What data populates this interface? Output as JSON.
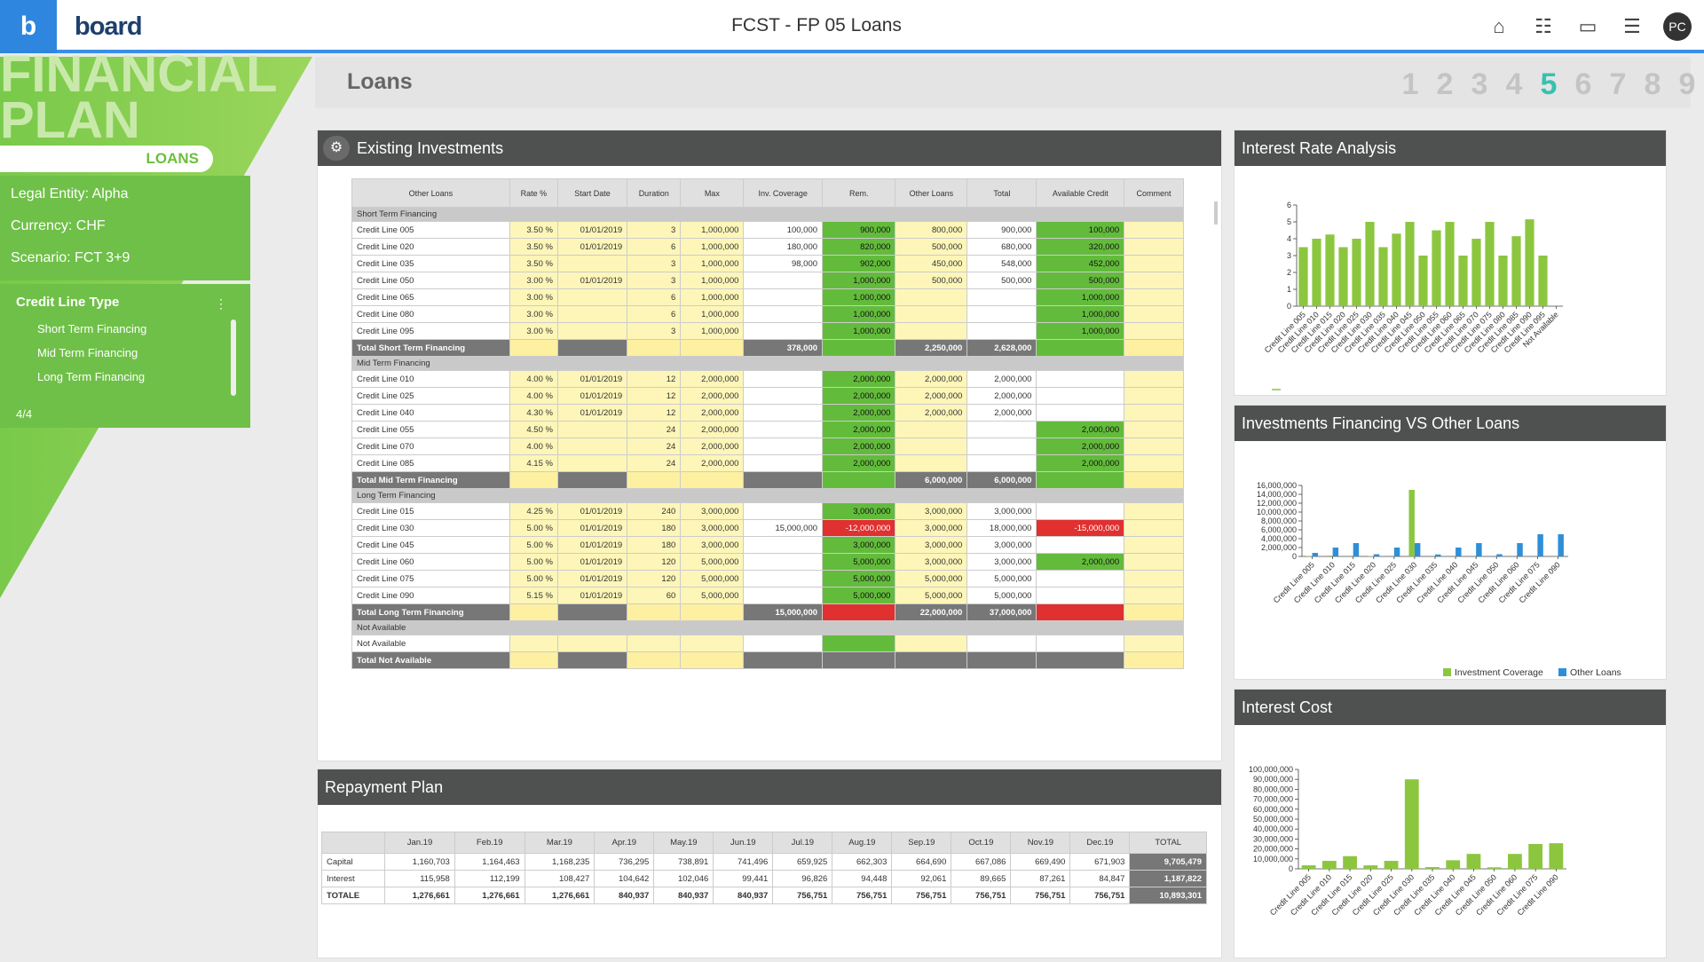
{
  "app": {
    "logo_letter": "b",
    "brand": "board",
    "title": "FCST - FP 05 Loans",
    "avatar": "PC"
  },
  "left": {
    "title_line1": "FINANCIAL",
    "title_line2": "PLAN",
    "subtitle": "LOANS",
    "legal": "Legal Entity: Alpha",
    "currency": "Currency:  CHF",
    "scenario": "Scenario: FCT 3+9",
    "credit_type": {
      "label": "Credit Line Type",
      "items": [
        "Short Term Financing",
        "Mid Term Financing",
        "Long Term Financing"
      ],
      "count": "4/4"
    }
  },
  "page": {
    "title": "Loans",
    "pages": [
      "1",
      "2",
      "3",
      "4",
      "5",
      "6",
      "7",
      "8",
      "9"
    ],
    "active_page": "5"
  },
  "invest": {
    "title": "Existing Investments",
    "headers": [
      "Other Loans",
      "Rate %",
      "Start Date",
      "Duration",
      "Max",
      "Inv. Coverage",
      "Rem.",
      "Other Loans",
      "Total",
      "Available Credit",
      "Comment"
    ],
    "sections": [
      {
        "name": "Short Term Financing",
        "rows": [
          [
            "Credit Line 005",
            "3.50 %",
            "01/01/2019",
            "3",
            "1,000,000",
            "100,000",
            "900,000",
            "800,000",
            "900,000",
            "100,000"
          ],
          [
            "Credit Line 020",
            "3.50 %",
            "01/01/2019",
            "6",
            "1,000,000",
            "180,000",
            "820,000",
            "500,000",
            "680,000",
            "320,000"
          ],
          [
            "Credit Line 035",
            "3.50 %",
            "",
            "3",
            "1,000,000",
            "98,000",
            "902,000",
            "450,000",
            "548,000",
            "452,000"
          ],
          [
            "Credit Line 050",
            "3.00 %",
            "01/01/2019",
            "3",
            "1,000,000",
            "",
            "1,000,000",
            "500,000",
            "500,000",
            "500,000"
          ],
          [
            "Credit Line 065",
            "3.00 %",
            "",
            "6",
            "1,000,000",
            "",
            "1,000,000",
            "",
            "",
            "1,000,000"
          ],
          [
            "Credit Line 080",
            "3.00 %",
            "",
            "6",
            "1,000,000",
            "",
            "1,000,000",
            "",
            "",
            "1,000,000"
          ],
          [
            "Credit Line 095",
            "3.00 %",
            "",
            "3",
            "1,000,000",
            "",
            "1,000,000",
            "",
            "",
            "1,000,000"
          ]
        ],
        "total": [
          "Total Short Term Financing",
          "",
          "",
          "",
          "",
          "378,000",
          "",
          "2,250,000",
          "2,628,000",
          ""
        ]
      },
      {
        "name": "Mid Term Financing",
        "rows": [
          [
            "Credit Line 010",
            "4.00 %",
            "01/01/2019",
            "12",
            "2,000,000",
            "",
            "2,000,000",
            "2,000,000",
            "2,000,000",
            ""
          ],
          [
            "Credit Line 025",
            "4.00 %",
            "01/01/2019",
            "12",
            "2,000,000",
            "",
            "2,000,000",
            "2,000,000",
            "2,000,000",
            ""
          ],
          [
            "Credit Line 040",
            "4.30 %",
            "01/01/2019",
            "12",
            "2,000,000",
            "",
            "2,000,000",
            "2,000,000",
            "2,000,000",
            ""
          ],
          [
            "Credit Line 055",
            "4.50 %",
            "",
            "24",
            "2,000,000",
            "",
            "2,000,000",
            "",
            "",
            "2,000,000"
          ],
          [
            "Credit Line 070",
            "4.00 %",
            "",
            "24",
            "2,000,000",
            "",
            "2,000,000",
            "",
            "",
            "2,000,000"
          ],
          [
            "Credit Line 085",
            "4.15 %",
            "",
            "24",
            "2,000,000",
            "",
            "2,000,000",
            "",
            "",
            "2,000,000"
          ]
        ],
        "total": [
          "Total Mid Term Financing",
          "",
          "",
          "",
          "",
          "",
          "",
          "6,000,000",
          "6,000,000",
          ""
        ]
      },
      {
        "name": "Long Term Financing",
        "rows": [
          [
            "Credit Line 015",
            "4.25 %",
            "01/01/2019",
            "240",
            "3,000,000",
            "",
            "3,000,000",
            "3,000,000",
            "3,000,000",
            ""
          ],
          [
            "Credit Line 030",
            "5.00 %",
            "01/01/2019",
            "180",
            "3,000,000",
            "15,000,000",
            "-12,000,000",
            "3,000,000",
            "18,000,000",
            "-15,000,000"
          ],
          [
            "Credit Line 045",
            "5.00 %",
            "01/01/2019",
            "180",
            "3,000,000",
            "",
            "3,000,000",
            "3,000,000",
            "3,000,000",
            ""
          ],
          [
            "Credit Line 060",
            "5.00 %",
            "01/01/2019",
            "120",
            "5,000,000",
            "",
            "5,000,000",
            "3,000,000",
            "3,000,000",
            "2,000,000"
          ],
          [
            "Credit Line 075",
            "5.00 %",
            "01/01/2019",
            "120",
            "5,000,000",
            "",
            "5,000,000",
            "5,000,000",
            "5,000,000",
            ""
          ],
          [
            "Credit Line 090",
            "5.15 %",
            "01/01/2019",
            "60",
            "5,000,000",
            "",
            "5,000,000",
            "5,000,000",
            "5,000,000",
            ""
          ]
        ],
        "total": [
          "Total Long Term Financing",
          "",
          "",
          "",
          "",
          "15,000,000",
          "",
          "22,000,000",
          "37,000,000",
          ""
        ]
      },
      {
        "name": "Not Available",
        "rows": [
          [
            "Not Available",
            "",
            "",
            "",
            "",
            "",
            "",
            "",
            "",
            ""
          ]
        ],
        "total": [
          "Total Not Available",
          "",
          "",
          "",
          "",
          "",
          "",
          "",
          "",
          ""
        ]
      }
    ]
  },
  "repay": {
    "title": "Repayment Plan",
    "headers": [
      "",
      "Jan.19",
      "Feb.19",
      "Mar.19",
      "Apr.19",
      "May.19",
      "Jun.19",
      "Jul.19",
      "Aug.19",
      "Sep.19",
      "Oct.19",
      "Nov.19",
      "Dec.19",
      "TOTAL"
    ],
    "rows": [
      [
        "Capital",
        "1,160,703",
        "1,164,463",
        "1,168,235",
        "736,295",
        "738,891",
        "741,496",
        "659,925",
        "662,303",
        "664,690",
        "667,086",
        "669,490",
        "671,903",
        "9,705,479"
      ],
      [
        "Interest",
        "115,958",
        "112,199",
        "108,427",
        "104,642",
        "102,046",
        "99,441",
        "96,826",
        "94,448",
        "92,061",
        "89,665",
        "87,261",
        "84,847",
        "1,187,822"
      ],
      [
        "TOTALE",
        "1,276,661",
        "1,276,661",
        "1,276,661",
        "840,937",
        "840,937",
        "840,937",
        "756,751",
        "756,751",
        "756,751",
        "756,751",
        "756,751",
        "756,751",
        "10,893,301"
      ]
    ]
  },
  "chart_data": [
    {
      "type": "bar",
      "title": "Interest Rate Analysis",
      "color": "#8cc63f",
      "categories": [
        "Credit Line 005",
        "Credit Line 010",
        "Credit Line 015",
        "Credit Line 020",
        "Credit Line 025",
        "Credit Line 030",
        "Credit Line 035",
        "Credit Line 040",
        "Credit Line 045",
        "Credit Line 050",
        "Credit Line 055",
        "Credit Line 060",
        "Credit Line 065",
        "Credit Line 070",
        "Credit Line 075",
        "Credit Line 080",
        "Credit Line 085",
        "Credit Line 090",
        "Credit Line 095",
        "Not Available"
      ],
      "values": [
        3.5,
        4.0,
        4.25,
        3.5,
        4.0,
        5.0,
        3.5,
        4.3,
        5.0,
        3.0,
        4.5,
        5.0,
        3.0,
        4.0,
        5.0,
        3.0,
        4.15,
        5.15,
        3.0,
        0
      ],
      "ylim": [
        0,
        6
      ],
      "yticks": [
        "0",
        "1",
        "2",
        "3",
        "4",
        "5",
        "6"
      ]
    },
    {
      "type": "bar",
      "title": "Investments Financing VS Other Loans",
      "categories": [
        "Credit Line 005",
        "Credit Line 010",
        "Credit Line 015",
        "Credit Line 020",
        "Credit Line 025",
        "Credit Line 030",
        "Credit Line 035",
        "Credit Line 040",
        "Credit Line 045",
        "Credit Line 050",
        "Credit Line 060",
        "Credit Line 075",
        "Credit Line 090"
      ],
      "series": [
        {
          "name": "Investment Coverage",
          "color": "#8cc63f",
          "values": [
            100000,
            180000,
            0,
            98000,
            0,
            15000000,
            0,
            0,
            0,
            0,
            0,
            0,
            0
          ]
        },
        {
          "name": "Other Loans",
          "color": "#2e8fd8",
          "values": [
            800000,
            2000000,
            3000000,
            500000,
            2000000,
            3000000,
            450000,
            2000000,
            3000000,
            500000,
            3000000,
            5000000,
            5000000
          ]
        }
      ],
      "ylim": [
        0,
        16000000
      ],
      "yticks": [
        "0",
        "2,000,000",
        "4,000,000",
        "6,000,000",
        "8,000,000",
        "10,000,000",
        "12,000,000",
        "14,000,000",
        "16,000,000"
      ],
      "legend": "bottom"
    },
    {
      "type": "bar",
      "title": "Interest Cost",
      "color": "#8cc63f",
      "categories": [
        "Credit Line 005",
        "Credit Line 010",
        "Credit Line 015",
        "Credit Line 020",
        "Credit Line 025",
        "Credit Line 030",
        "Credit Line 035",
        "Credit Line 040",
        "Credit Line 045",
        "Credit Line 050",
        "Credit Line 060",
        "Credit Line 075",
        "Credit Line 090"
      ],
      "values": [
        3500000,
        8000000,
        12750000,
        3500000,
        8000000,
        90000000,
        1750000,
        8600000,
        15000000,
        1500000,
        15000000,
        25000000,
        25750000
      ],
      "ylim": [
        0,
        100000000
      ],
      "yticks": [
        "0",
        "10,000,000",
        "20,000,000",
        "30,000,000",
        "40,000,000",
        "50,000,000",
        "60,000,000",
        "70,000,000",
        "80,000,000",
        "90,000,000",
        "100,000,000"
      ]
    }
  ]
}
